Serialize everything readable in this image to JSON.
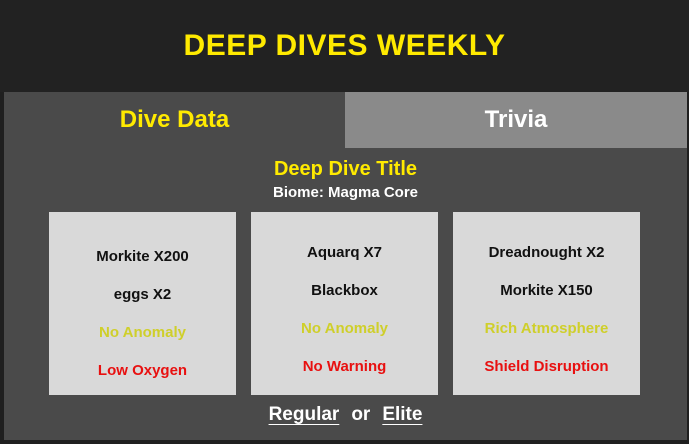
{
  "header": {
    "title": "DEEP DIVES WEEKLY"
  },
  "tabs": [
    {
      "label": "Dive Data",
      "active": true
    },
    {
      "label": "Trivia",
      "active": false
    }
  ],
  "dive": {
    "title": "Deep Dive Title",
    "biome": "Biome: Magma Core"
  },
  "stages": [
    {
      "primary": "Morkite X200",
      "secondary": "eggs X2",
      "anomaly": "No Anomaly",
      "warning": "Low Oxygen"
    },
    {
      "primary": "Aquarq X7",
      "secondary": "Blackbox",
      "anomaly": "No Anomaly",
      "warning": "No Warning"
    },
    {
      "primary": "Dreadnought X2",
      "secondary": "Morkite X150",
      "anomaly": "Rich Atmosphere",
      "warning": "Shield Disruption"
    }
  ],
  "footer": {
    "regular_label": "Regular",
    "or_label": "or",
    "elite_label": "Elite"
  },
  "colors": {
    "accent": "#ffea00",
    "anomaly": "#cfcf2a",
    "warning": "#e81010",
    "panel": "#4a4a4a",
    "inactive_tab": "#8a8a8a"
  }
}
